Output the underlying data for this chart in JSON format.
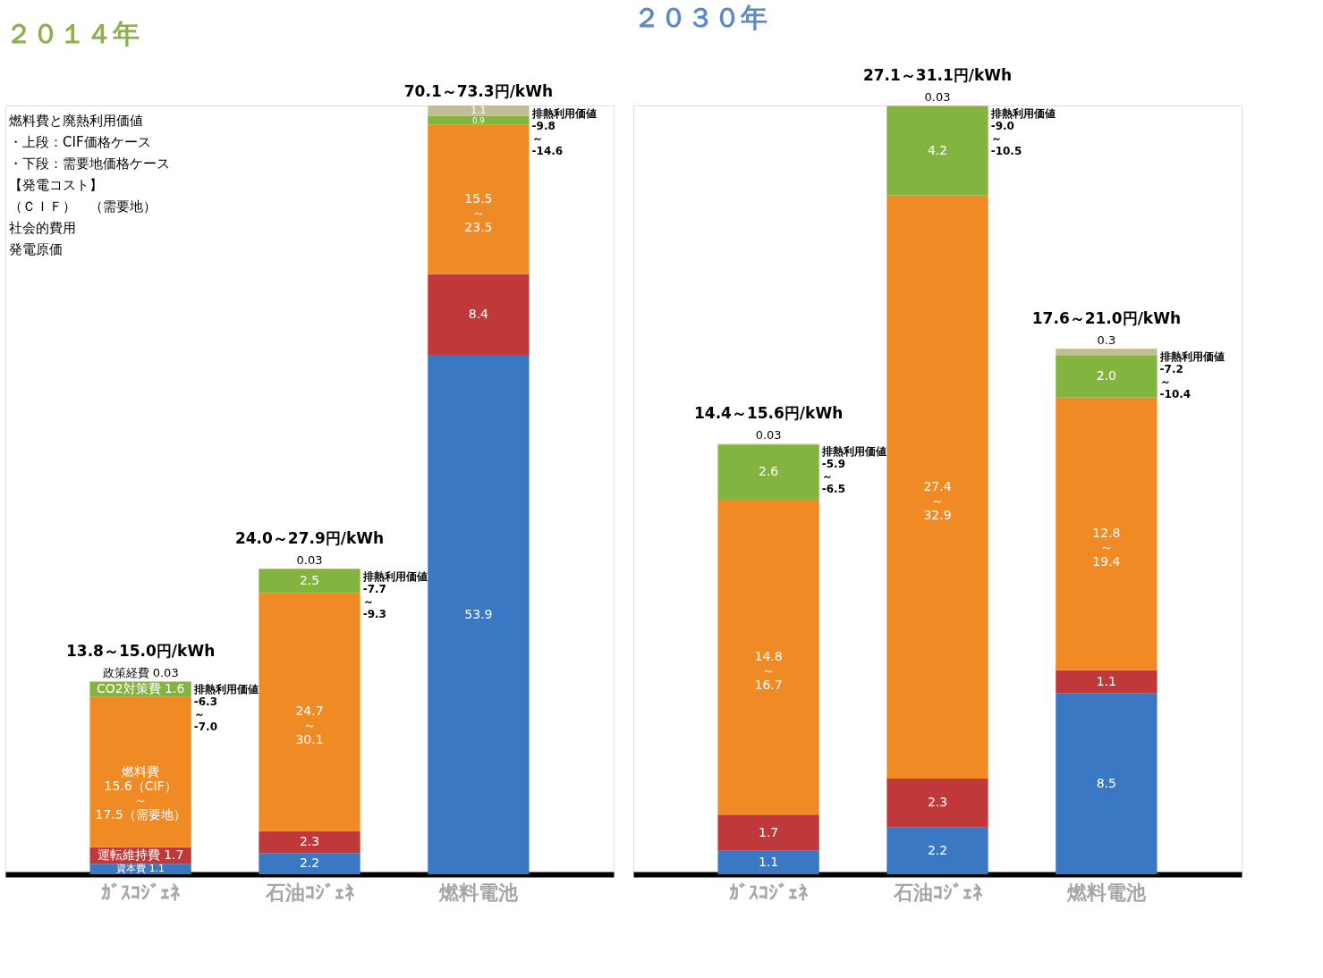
{
  "chart_data": [
    {
      "type": "bar",
      "stacked": true,
      "title": "２０１４年",
      "categories": [
        "ｶﾞｽｺｼﾞｪﾈ",
        "石油ｺｼﾞｪﾈ",
        "燃料電池"
      ],
      "grid": false,
      "tick_labels": "x",
      "series": [
        {
          "color": "#3a78c3",
          "values": [
            1.1,
            2.2,
            53.9
          ],
          "value_labels": [
            "資本費 1.1",
            "2.2",
            "53.9"
          ]
        },
        {
          "color": "#c0393a",
          "values": [
            1.7,
            2.3,
            8.4
          ],
          "value_labels": [
            "運転維持費 1.7",
            "2.3",
            "8.4"
          ]
        },
        {
          "color": "#f08a24",
          "values": [
            15.6,
            24.7,
            15.5
          ],
          "value_labels": [
            "燃料費15.6（CIF）～17.5（需要地）",
            "24.7～30.1",
            "15.5～23.5"
          ]
        },
        {
          "color": "#84b440",
          "values": [
            1.6,
            2.5,
            0.9
          ],
          "value_labels": [
            "CO2対策費 1.6",
            "2.5",
            "0.9"
          ]
        },
        {
          "color": "#c4bc96",
          "values": [
            0.03,
            0.03,
            1.1
          ],
          "value_labels": [
            "政策経費 0.03",
            "0.03",
            "1.1"
          ]
        }
      ],
      "totals": [
        "13.8～15.0円/kWh",
        "24.0～27.9円/kWh",
        "70.1～73.3円/kWh"
      ],
      "annotations": [
        "燃料費と廃熱利用価値",
        "・上段：CIF価格ケース",
        "・下段：需要地価格ケース",
        "【発電コスト】",
        "（ＣＩＦ）　（需要地）",
        "社会的費用",
        "発電原価",
        "排熱利用価値-6.3～-7.0",
        "排熱利用価値-7.7～-9.3",
        "排熱利用価値-9.8～-14.6"
      ]
    },
    {
      "type": "bar",
      "stacked": true,
      "title": "２０３０年",
      "categories": [
        "ｶﾞｽｺｼﾞｪﾈ",
        "石油ｺｼﾞｪﾈ",
        "燃料電池"
      ],
      "grid": false,
      "tick_labels": "x",
      "series": [
        {
          "color": "#3a78c3",
          "values": [
            1.1,
            2.2,
            8.5
          ],
          "value_labels": [
            "1.1",
            "2.2",
            "8.5"
          ]
        },
        {
          "color": "#c0393a",
          "values": [
            1.7,
            2.3,
            1.1
          ],
          "value_labels": [
            "1.7",
            "2.3",
            "1.1"
          ]
        },
        {
          "color": "#f08a24",
          "values": [
            14.8,
            27.4,
            12.8
          ],
          "value_labels": [
            "14.8～16.7",
            "27.4～32.9",
            "12.8～19.4"
          ]
        },
        {
          "color": "#84b440",
          "values": [
            2.6,
            4.2,
            2.0
          ],
          "value_labels": [
            "2.6",
            "4.2",
            "2.0"
          ]
        },
        {
          "color": "#c4bc96",
          "values": [
            0.03,
            0.03,
            0.3
          ],
          "value_labels": [
            "0.03",
            "0.03",
            "0.3"
          ]
        }
      ],
      "totals": [
        "14.4～15.6円/kWh",
        "27.1～31.1円/kWh",
        "17.6～21.0円/kWh"
      ],
      "annotations": [
        "排熱利用価値-5.9～-6.5",
        "排熱利用価値-9.0～-10.5",
        "排熱利用価値-7.2～-10.4"
      ]
    }
  ]
}
